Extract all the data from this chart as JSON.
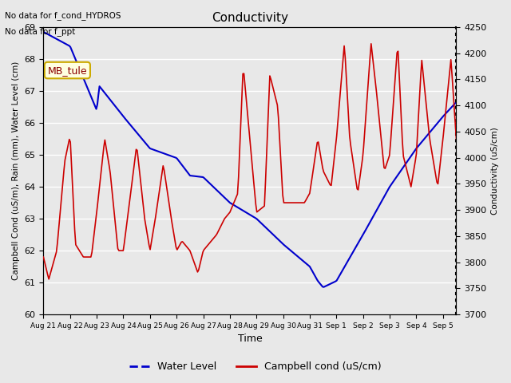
{
  "title": "Conductivity",
  "annotations": [
    "No data for f_cond_HYDROS",
    "No data for f_ppt"
  ],
  "legend_box_label": "MB_tule",
  "xlabel": "Time",
  "ylabel_left": "Campbell Cond (uS/m), Rain (mm), Water Level (cm)",
  "ylabel_right": "Conductivity (uS/cm)",
  "ylim_left": [
    60.0,
    69.0
  ],
  "ylim_right": [
    3700,
    4250
  ],
  "xtick_positions": [
    0,
    1,
    2,
    3,
    4,
    5,
    6,
    7,
    8,
    9,
    10,
    11,
    12,
    13,
    14,
    15
  ],
  "xtick_labels": [
    "Aug 21",
    "Aug 22",
    "Aug 23",
    "Aug 24",
    "Aug 25",
    "Aug 26",
    "Aug 27",
    "Aug 28",
    "Aug 29",
    "Aug 30",
    "Aug 31",
    "Sep 1",
    "Sep 2",
    "Sep 3",
    "Sep 4",
    "Sep 5"
  ],
  "bg_color": "#e8e8e8",
  "water_level_color": "#0000cc",
  "campbell_color": "#cc0000",
  "water_level_label": "Water Level",
  "campbell_label": "Campbell cond (uS/cm)",
  "wl_keypoints_x": [
    0,
    1,
    2,
    2.1,
    3,
    4,
    5,
    5.5,
    6,
    7,
    8,
    9,
    10,
    10.3,
    10.5,
    11,
    12,
    13,
    14,
    15,
    15.5
  ],
  "wl_keypoints_y": [
    68.85,
    68.4,
    66.4,
    67.15,
    66.2,
    65.2,
    64.9,
    64.35,
    64.3,
    63.5,
    63.0,
    62.2,
    61.5,
    61.05,
    60.85,
    61.05,
    62.5,
    64.0,
    65.2,
    66.2,
    66.65
  ],
  "cc_keypoints_x": [
    0,
    0.2,
    0.5,
    0.8,
    1.0,
    1.2,
    1.5,
    1.8,
    2.0,
    2.3,
    2.5,
    2.8,
    3.0,
    3.2,
    3.5,
    3.8,
    4.0,
    4.2,
    4.5,
    4.8,
    5.0,
    5.2,
    5.5,
    5.8,
    6.0,
    6.5,
    6.8,
    7.0,
    7.3,
    7.5,
    7.8,
    8.0,
    8.3,
    8.5,
    8.8,
    9.0,
    9.5,
    9.8,
    10.0,
    10.3,
    10.5,
    10.8,
    11.0,
    11.3,
    11.5,
    11.8,
    12.0,
    12.3,
    12.5,
    12.8,
    13.0,
    13.3,
    13.5,
    13.8,
    14.0,
    14.2,
    14.5,
    14.8,
    15.0,
    15.3,
    15.5
  ],
  "cc_keypoints_y": [
    61.8,
    61.1,
    62.0,
    64.8,
    65.6,
    62.2,
    61.8,
    61.8,
    63.2,
    65.5,
    64.5,
    62.0,
    62.0,
    63.3,
    65.3,
    63.0,
    62.0,
    63.0,
    64.7,
    63.0,
    62.0,
    62.3,
    62.0,
    61.3,
    62.0,
    62.5,
    63.0,
    63.2,
    63.8,
    67.8,
    65.0,
    63.2,
    63.4,
    67.5,
    66.5,
    63.5,
    63.5,
    63.5,
    63.8,
    65.5,
    64.5,
    64.0,
    65.5,
    68.5,
    65.5,
    63.8,
    65.0,
    68.5,
    67.0,
    64.5,
    65.0,
    68.5,
    65.0,
    64.0,
    65.0,
    68.0,
    65.5,
    64.0,
    65.5,
    68.0,
    65.5
  ],
  "yticks_left": [
    60.0,
    61.0,
    62.0,
    63.0,
    64.0,
    65.0,
    66.0,
    67.0,
    68.0,
    69.0
  ],
  "yticks_right": [
    3700,
    3750,
    3800,
    3850,
    3900,
    3950,
    4000,
    4050,
    4100,
    4150,
    4200,
    4250
  ]
}
